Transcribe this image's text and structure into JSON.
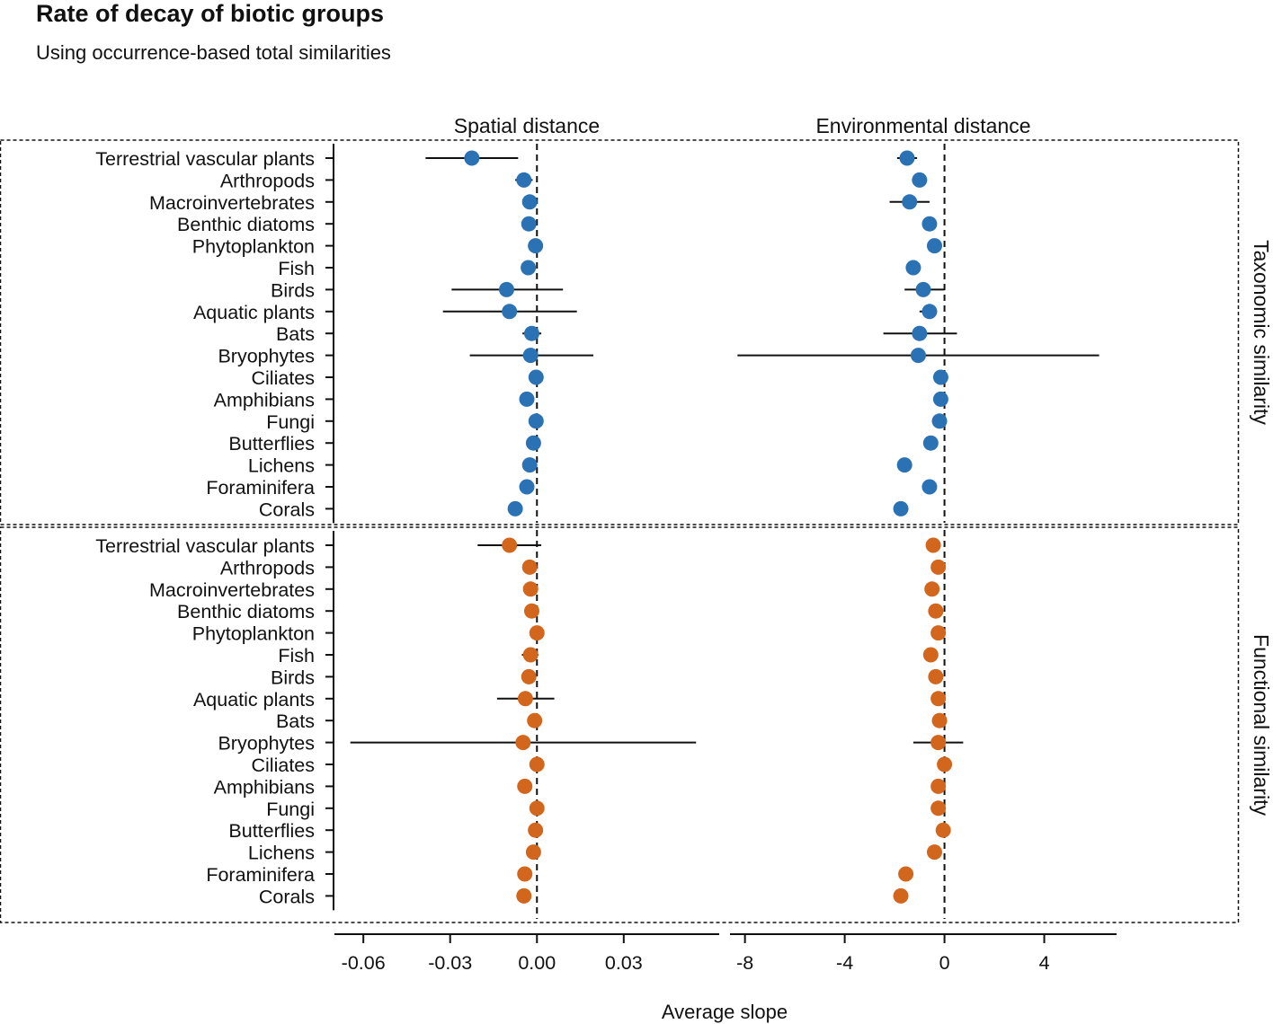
{
  "title": "Rate of decay of biotic groups",
  "subtitle": "Using occurrence-based total similarities",
  "chart_data": {
    "type": "scatter",
    "subtype": "dot-and-whisker (point estimate with interval), faceted 2x2",
    "x_label": "Average slope",
    "columns": [
      {
        "name": "Spatial distance",
        "xlim": [
          -0.07,
          0.063
        ],
        "ticks": [
          -0.06,
          -0.03,
          0.0,
          0.03
        ],
        "tick_labels": [
          "-0.06",
          "-0.03",
          "0.00",
          "0.03"
        ]
      },
      {
        "name": "Environmental distance",
        "xlim": [
          -8.6,
          6.9
        ],
        "ticks": [
          -8,
          -4,
          0,
          4
        ],
        "tick_labels": [
          "-8",
          "-4",
          "0",
          "4"
        ]
      }
    ],
    "rows": [
      {
        "name": "Taxonomic similarity",
        "color": "#2b72b5"
      },
      {
        "name": "Functional similarity",
        "color": "#d2661d"
      }
    ],
    "categories": [
      "Terrestrial vascular plants",
      "Arthropods",
      "Macroinvertebrates",
      "Benthic diatoms",
      "Phytoplankton",
      "Fish",
      "Birds",
      "Aquatic plants",
      "Bats",
      "Bryophytes",
      "Ciliates",
      "Amphibians",
      "Fungi",
      "Butterflies",
      "Lichens",
      "Foraminifera",
      "Corals"
    ],
    "reference_line": 0,
    "grid": false,
    "series": [
      {
        "row": "Taxonomic similarity",
        "column": "Spatial distance",
        "estimate": [
          -0.0225,
          -0.0045,
          -0.0025,
          -0.0028,
          -0.0005,
          -0.003,
          -0.0105,
          -0.0095,
          -0.0018,
          -0.0022,
          -0.0003,
          -0.0035,
          -0.0003,
          -0.0012,
          -0.0025,
          -0.0035,
          -0.0075
        ],
        "lower": [
          -0.0385,
          -0.0075,
          -0.003,
          -0.003,
          -0.0008,
          -0.0035,
          -0.0295,
          -0.0325,
          -0.005,
          -0.0232,
          -0.0003,
          -0.0035,
          -0.0003,
          -0.0012,
          -0.0025,
          -0.0035,
          -0.0075
        ],
        "upper": [
          -0.0065,
          -0.0015,
          -0.0015,
          -0.0025,
          -0.0003,
          -0.0025,
          0.009,
          0.0138,
          0.0015,
          0.0195,
          -0.0003,
          -0.0035,
          -0.0003,
          -0.0012,
          -0.0025,
          -0.0035,
          -0.0075
        ]
      },
      {
        "row": "Taxonomic similarity",
        "column": "Environmental distance",
        "estimate": [
          -1.5,
          -1.0,
          -1.4,
          -0.6,
          -0.4,
          -1.25,
          -0.85,
          -0.6,
          -1.0,
          -1.05,
          -0.15,
          -0.15,
          -0.2,
          -0.55,
          -1.6,
          -0.6,
          -1.75
        ],
        "lower": [
          -1.9,
          -1.3,
          -2.2,
          -0.6,
          -0.4,
          -1.5,
          -1.6,
          -1.0,
          -2.45,
          -8.3,
          -0.15,
          -0.15,
          -0.2,
          -0.55,
          -1.6,
          -0.6,
          -1.75
        ],
        "upper": [
          -1.1,
          -0.7,
          -0.6,
          -0.6,
          -0.4,
          -1.0,
          0.0,
          -0.3,
          0.5,
          6.2,
          -0.15,
          -0.15,
          -0.2,
          -0.55,
          -1.6,
          -0.6,
          -1.75
        ]
      },
      {
        "row": "Functional similarity",
        "column": "Spatial distance",
        "estimate": [
          -0.0095,
          -0.0025,
          -0.0022,
          -0.0018,
          0.0,
          -0.0022,
          -0.0028,
          -0.004,
          -0.0008,
          -0.0048,
          0.0,
          -0.0042,
          0.0,
          -0.0005,
          -0.0012,
          -0.0042,
          -0.0045
        ],
        "lower": [
          -0.0205,
          -0.0025,
          -0.0045,
          -0.0018,
          0.0,
          -0.0052,
          -0.0035,
          -0.0138,
          -0.0008,
          -0.0645,
          0.0,
          -0.0042,
          0.0,
          -0.0005,
          -0.0012,
          -0.0042,
          -0.0045
        ],
        "upper": [
          0.0015,
          -0.0025,
          0.0,
          -0.0018,
          0.0,
          0.0005,
          -0.002,
          0.006,
          -0.0008,
          0.055,
          0.0,
          -0.0042,
          0.0,
          -0.0005,
          -0.0012,
          -0.0042,
          -0.0045
        ]
      },
      {
        "row": "Functional similarity",
        "column": "Environmental distance",
        "estimate": [
          -0.45,
          -0.25,
          -0.5,
          -0.35,
          -0.25,
          -0.55,
          -0.35,
          -0.25,
          -0.2,
          -0.25,
          0.0,
          -0.25,
          -0.25,
          -0.05,
          -0.4,
          -1.55,
          -1.75
        ],
        "lower": [
          -0.45,
          -0.25,
          -0.5,
          -0.35,
          -0.25,
          -0.55,
          -0.65,
          -0.5,
          -0.2,
          -1.25,
          0.0,
          -0.25,
          -0.25,
          -0.05,
          -0.4,
          -1.55,
          -1.75
        ],
        "upper": [
          -0.45,
          -0.25,
          -0.5,
          -0.35,
          -0.25,
          -0.55,
          -0.1,
          0.0,
          -0.2,
          0.75,
          0.0,
          -0.25,
          -0.25,
          -0.05,
          -0.4,
          -1.55,
          -1.75
        ]
      }
    ]
  }
}
